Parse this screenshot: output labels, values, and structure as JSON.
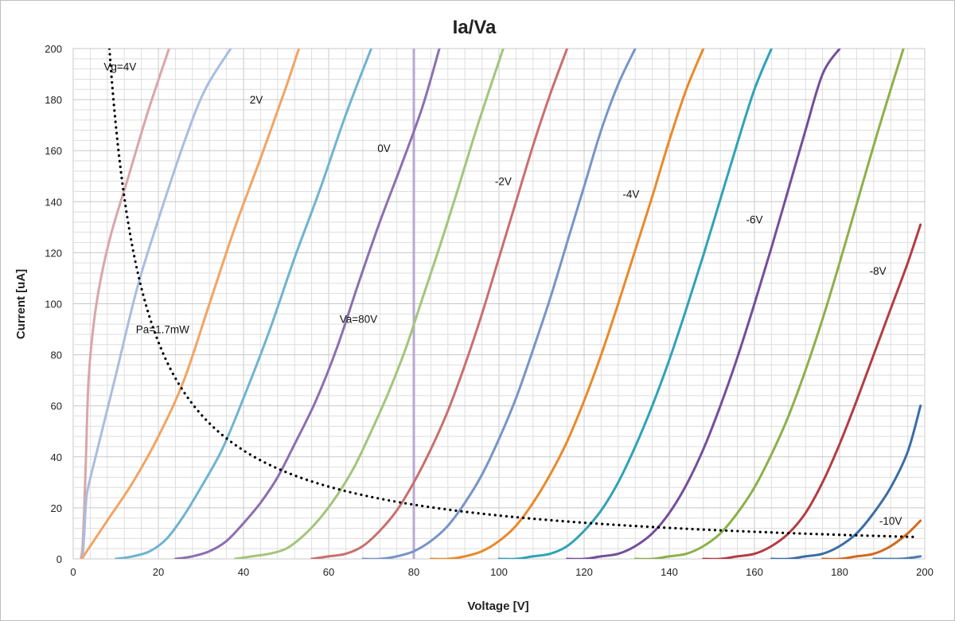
{
  "chart_data": {
    "type": "line",
    "title": "Ia/Va",
    "xlabel": "Voltage [V]",
    "ylabel": "Current [uA]",
    "xlim": [
      0,
      200
    ],
    "ylim": [
      0,
      200
    ],
    "xticks": [
      0,
      20,
      40,
      60,
      80,
      100,
      120,
      140,
      160,
      180,
      200
    ],
    "yticks": [
      0,
      20,
      40,
      60,
      80,
      100,
      120,
      140,
      160,
      180,
      200
    ],
    "xtick_labels": [
      "0",
      "20",
      "40",
      "60",
      "80",
      "100",
      "120",
      "140",
      "160",
      "180",
      "200"
    ],
    "ytick_labels": [
      "0",
      "20",
      "40",
      "60",
      "80",
      "100",
      "120",
      "140",
      "160",
      "180",
      "200"
    ],
    "grid": true,
    "annotations": [
      {
        "text": "Vg=4V",
        "x": 11,
        "y": 193
      },
      {
        "text": "2V",
        "x": 43,
        "y": 180
      },
      {
        "text": "0V",
        "x": 73,
        "y": 161
      },
      {
        "text": "-2V",
        "x": 101,
        "y": 148
      },
      {
        "text": "-4V",
        "x": 131,
        "y": 143
      },
      {
        "text": "-6V",
        "x": 160,
        "y": 133
      },
      {
        "text": "-8V",
        "x": 189,
        "y": 113
      },
      {
        "text": "-10V",
        "x": 192,
        "y": 15
      },
      {
        "text": "Pa=1.7mW",
        "x": 21,
        "y": 90
      },
      {
        "text": "Va=80V",
        "x": 67,
        "y": 94
      }
    ],
    "series": [
      {
        "color": "#d9a6a8",
        "values": [
          [
            1.8,
            0
          ],
          [
            2.2,
            5
          ],
          [
            2.6,
            20
          ],
          [
            3,
            40
          ],
          [
            3.6,
            70
          ],
          [
            4.8,
            92
          ],
          [
            6.5,
            110
          ],
          [
            9,
            128
          ],
          [
            13,
            150
          ],
          [
            17.5,
            175
          ],
          [
            22.5,
            200
          ]
        ]
      },
      {
        "color": "#a9bde0",
        "values": [
          [
            2.2,
            0
          ],
          [
            2.6,
            10
          ],
          [
            3,
            22
          ],
          [
            3.5,
            28
          ],
          [
            6,
            45
          ],
          [
            10,
            72
          ],
          [
            15,
            106
          ],
          [
            20,
            133
          ],
          [
            26,
            163
          ],
          [
            31,
            184
          ],
          [
            37,
            200
          ]
        ]
      },
      {
        "color": "#f2a463",
        "values": [
          [
            2,
            0
          ],
          [
            8,
            15
          ],
          [
            14,
            30
          ],
          [
            20,
            48
          ],
          [
            26,
            70
          ],
          [
            32,
            100
          ],
          [
            38,
            130
          ],
          [
            44,
            157
          ],
          [
            50,
            185
          ],
          [
            53,
            200
          ]
        ]
      },
      {
        "color": "#6fb4cf",
        "values": [
          [
            10,
            0
          ],
          [
            14,
            1
          ],
          [
            18,
            3
          ],
          [
            22,
            8
          ],
          [
            26,
            17
          ],
          [
            30,
            28
          ],
          [
            35,
            43
          ],
          [
            40,
            63
          ],
          [
            46,
            89
          ],
          [
            52,
            118
          ],
          [
            58,
            145
          ],
          [
            64,
            174
          ],
          [
            70,
            200
          ]
        ]
      },
      {
        "color": "#8c6fb0",
        "values": [
          [
            24,
            0
          ],
          [
            28,
            1
          ],
          [
            32,
            3
          ],
          [
            36,
            7
          ],
          [
            40,
            14
          ],
          [
            44,
            22
          ],
          [
            48,
            32
          ],
          [
            52,
            45
          ],
          [
            57,
            62
          ],
          [
            62,
            83
          ],
          [
            67,
            108
          ],
          [
            72,
            132
          ],
          [
            77,
            154
          ],
          [
            82,
            177
          ],
          [
            86,
            200
          ]
        ]
      },
      {
        "color": "#a3c57a",
        "values": [
          [
            38,
            0
          ],
          [
            42,
            1
          ],
          [
            46,
            2
          ],
          [
            50,
            4
          ],
          [
            54,
            9
          ],
          [
            58,
            16
          ],
          [
            62,
            25
          ],
          [
            66,
            36
          ],
          [
            70,
            50
          ],
          [
            74,
            65
          ],
          [
            78,
            82
          ],
          [
            82,
            102
          ],
          [
            86,
            122
          ],
          [
            90,
            143
          ],
          [
            95,
            170
          ],
          [
            101,
            200
          ]
        ]
      },
      {
        "color": "#c96f6f",
        "values": [
          [
            56,
            0
          ],
          [
            60,
            1
          ],
          [
            64,
            2
          ],
          [
            68,
            5
          ],
          [
            72,
            11
          ],
          [
            76,
            19
          ],
          [
            80,
            30
          ],
          [
            84,
            43
          ],
          [
            88,
            58
          ],
          [
            92,
            76
          ],
          [
            96,
            96
          ],
          [
            100,
            118
          ],
          [
            104,
            140
          ],
          [
            108,
            162
          ],
          [
            112,
            182
          ],
          [
            116,
            200
          ]
        ]
      },
      {
        "color": "#7795c8",
        "values": [
          [
            68,
            0
          ],
          [
            72,
            0
          ],
          [
            76,
            1
          ],
          [
            80,
            3
          ],
          [
            84,
            7
          ],
          [
            88,
            13
          ],
          [
            92,
            22
          ],
          [
            96,
            33
          ],
          [
            100,
            47
          ],
          [
            104,
            63
          ],
          [
            108,
            82
          ],
          [
            112,
            102
          ],
          [
            116,
            124
          ],
          [
            120,
            146
          ],
          [
            124,
            168
          ],
          [
            128,
            186
          ],
          [
            132,
            200
          ]
        ]
      },
      {
        "color": "#e98a2a",
        "values": [
          [
            84,
            0
          ],
          [
            88,
            0
          ],
          [
            92,
            1
          ],
          [
            96,
            3
          ],
          [
            100,
            7
          ],
          [
            104,
            13
          ],
          [
            108,
            22
          ],
          [
            112,
            33
          ],
          [
            116,
            46
          ],
          [
            120,
            62
          ],
          [
            124,
            80
          ],
          [
            128,
            100
          ],
          [
            132,
            121
          ],
          [
            136,
            142
          ],
          [
            140,
            164
          ],
          [
            144,
            184
          ],
          [
            148,
            200
          ]
        ]
      },
      {
        "color": "#2fa3b7",
        "values": [
          [
            100,
            0
          ],
          [
            104,
            0
          ],
          [
            108,
            1
          ],
          [
            112,
            2
          ],
          [
            116,
            5
          ],
          [
            120,
            11
          ],
          [
            124,
            19
          ],
          [
            128,
            30
          ],
          [
            132,
            44
          ],
          [
            136,
            60
          ],
          [
            140,
            78
          ],
          [
            144,
            98
          ],
          [
            148,
            119
          ],
          [
            152,
            141
          ],
          [
            156,
            163
          ],
          [
            160,
            184
          ],
          [
            164,
            200
          ]
        ]
      },
      {
        "color": "#734f9b",
        "values": [
          [
            116,
            0
          ],
          [
            120,
            0
          ],
          [
            124,
            1
          ],
          [
            128,
            2
          ],
          [
            132,
            5
          ],
          [
            136,
            10
          ],
          [
            140,
            18
          ],
          [
            144,
            29
          ],
          [
            148,
            43
          ],
          [
            152,
            60
          ],
          [
            156,
            79
          ],
          [
            160,
            100
          ],
          [
            164,
            122
          ],
          [
            168,
            145
          ],
          [
            172,
            168
          ],
          [
            176,
            190
          ],
          [
            180,
            200
          ]
        ]
      },
      {
        "color": "#8db04a",
        "values": [
          [
            132,
            0
          ],
          [
            136,
            0
          ],
          [
            140,
            1
          ],
          [
            144,
            2
          ],
          [
            148,
            5
          ],
          [
            152,
            10
          ],
          [
            156,
            18
          ],
          [
            160,
            28
          ],
          [
            164,
            41
          ],
          [
            168,
            56
          ],
          [
            172,
            74
          ],
          [
            176,
            94
          ],
          [
            180,
            116
          ],
          [
            184,
            139
          ],
          [
            188,
            162
          ],
          [
            192,
            184
          ],
          [
            195,
            200
          ]
        ]
      },
      {
        "color": "#b43c44",
        "values": [
          [
            148,
            0
          ],
          [
            152,
            0
          ],
          [
            156,
            1
          ],
          [
            160,
            2
          ],
          [
            164,
            5
          ],
          [
            168,
            10
          ],
          [
            172,
            18
          ],
          [
            176,
            30
          ],
          [
            180,
            45
          ],
          [
            184,
            62
          ],
          [
            188,
            80
          ],
          [
            192,
            98
          ],
          [
            196,
            116
          ],
          [
            199,
            131
          ]
        ]
      },
      {
        "color": "#3a6ea5",
        "values": [
          [
            164,
            0
          ],
          [
            168,
            0
          ],
          [
            172,
            1
          ],
          [
            176,
            2
          ],
          [
            180,
            5
          ],
          [
            184,
            10
          ],
          [
            188,
            18
          ],
          [
            192,
            28
          ],
          [
            196,
            42
          ],
          [
            199,
            60
          ]
        ]
      },
      {
        "color": "#d2691e",
        "values": [
          [
            176,
            0
          ],
          [
            180,
            0
          ],
          [
            184,
            1
          ],
          [
            188,
            2
          ],
          [
            192,
            5
          ],
          [
            196,
            10
          ],
          [
            199,
            15
          ]
        ]
      },
      {
        "color": "#4a7db3",
        "values": [
          [
            188,
            0
          ],
          [
            194,
            0
          ],
          [
            197,
            0.5
          ],
          [
            199,
            1
          ]
        ]
      }
    ],
    "reference_lines": [
      {
        "kind": "vertical",
        "x": 80,
        "color": "#b9a7d4"
      },
      {
        "kind": "power_curve",
        "power_mW": 1.7,
        "x_range": [
          8.5,
          198
        ],
        "color": "#000000",
        "style": "dotted"
      }
    ]
  }
}
